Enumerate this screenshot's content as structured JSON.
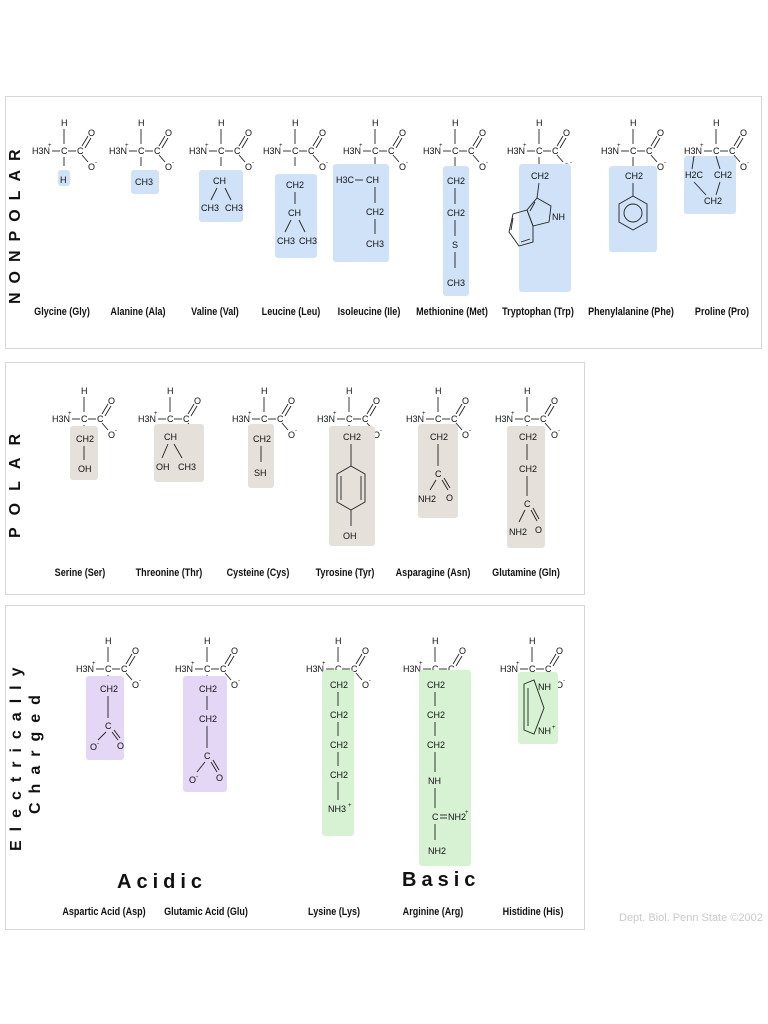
{
  "sections": {
    "nonpolar": "NONPOLAR",
    "polar": "POLAR",
    "charged_line1": "Electrically",
    "charged_line2": "Charged"
  },
  "groups": {
    "acidic": "Acidic",
    "basic": "Basic"
  },
  "credit": "Dept. Biol. Penn State ©2002",
  "colors": {
    "nonpolar": "#cfe2f7",
    "polar": "#e6e0db",
    "acidic": "#e4d6f5",
    "basic": "#d6f2d3"
  },
  "backbone": {
    "amine": "H3N",
    "alpha_h": "H",
    "alpha_c": "C",
    "carboxyl_c": "C",
    "oxygen": "O"
  },
  "amino_acids": {
    "gly": {
      "name": "Glycine (Gly)",
      "side": [
        "H"
      ]
    },
    "ala": {
      "name": "Alanine (Ala)",
      "side": [
        "CH3"
      ]
    },
    "val": {
      "name": "Valine (Val)",
      "side": [
        "CH",
        "CH3",
        "CH3"
      ]
    },
    "leu": {
      "name": "Leucine (Leu)",
      "side": [
        "CH2",
        "CH",
        "CH3",
        "CH3"
      ]
    },
    "ile": {
      "name": "Isoleucine (Ile)",
      "side": [
        "H3C",
        "CH",
        "CH2",
        "CH3"
      ]
    },
    "met": {
      "name": "Methionine (Met)",
      "side": [
        "CH2",
        "CH2",
        "S",
        "CH3"
      ]
    },
    "trp": {
      "name": "Tryptophan (Trp)",
      "side": [
        "CH2",
        "NH"
      ]
    },
    "phe": {
      "name": "Phenylalanine (Phe)",
      "side": [
        "CH2"
      ]
    },
    "pro": {
      "name": "Proline (Pro)",
      "side": [
        "H2C",
        "CH2",
        "CH2"
      ]
    },
    "ser": {
      "name": "Serine (Ser)",
      "side": [
        "CH2",
        "OH"
      ]
    },
    "thr": {
      "name": "Threonine (Thr)",
      "side": [
        "CH",
        "OH",
        "CH3"
      ]
    },
    "cys": {
      "name": "Cysteine (Cys)",
      "side": [
        "CH2",
        "SH"
      ]
    },
    "tyr": {
      "name": "Tyrosine (Tyr)",
      "side": [
        "CH2",
        "OH"
      ]
    },
    "asn": {
      "name": "Asparagine (Asn)",
      "side": [
        "CH2",
        "C",
        "NH2",
        "O"
      ]
    },
    "gln": {
      "name": "Glutamine (Gln)",
      "side": [
        "CH2",
        "CH2",
        "C",
        "NH2",
        "O"
      ]
    },
    "asp": {
      "name": "Aspartic Acid (Asp)",
      "side": [
        "CH2",
        "C",
        "O",
        "O"
      ]
    },
    "glu": {
      "name": "Glutamic Acid (Glu)",
      "side": [
        "CH2",
        "CH2",
        "C",
        "O",
        "O"
      ]
    },
    "lys": {
      "name": "Lysine (Lys)",
      "side": [
        "CH2",
        "CH2",
        "CH2",
        "CH2",
        "NH3"
      ]
    },
    "arg": {
      "name": "Arginine (Arg)",
      "side": [
        "CH2",
        "CH2",
        "CH2",
        "NH",
        "C",
        "NH2",
        "NH2"
      ]
    },
    "his": {
      "name": "Histidine (His)",
      "side": [
        "NH",
        "NH"
      ]
    }
  }
}
